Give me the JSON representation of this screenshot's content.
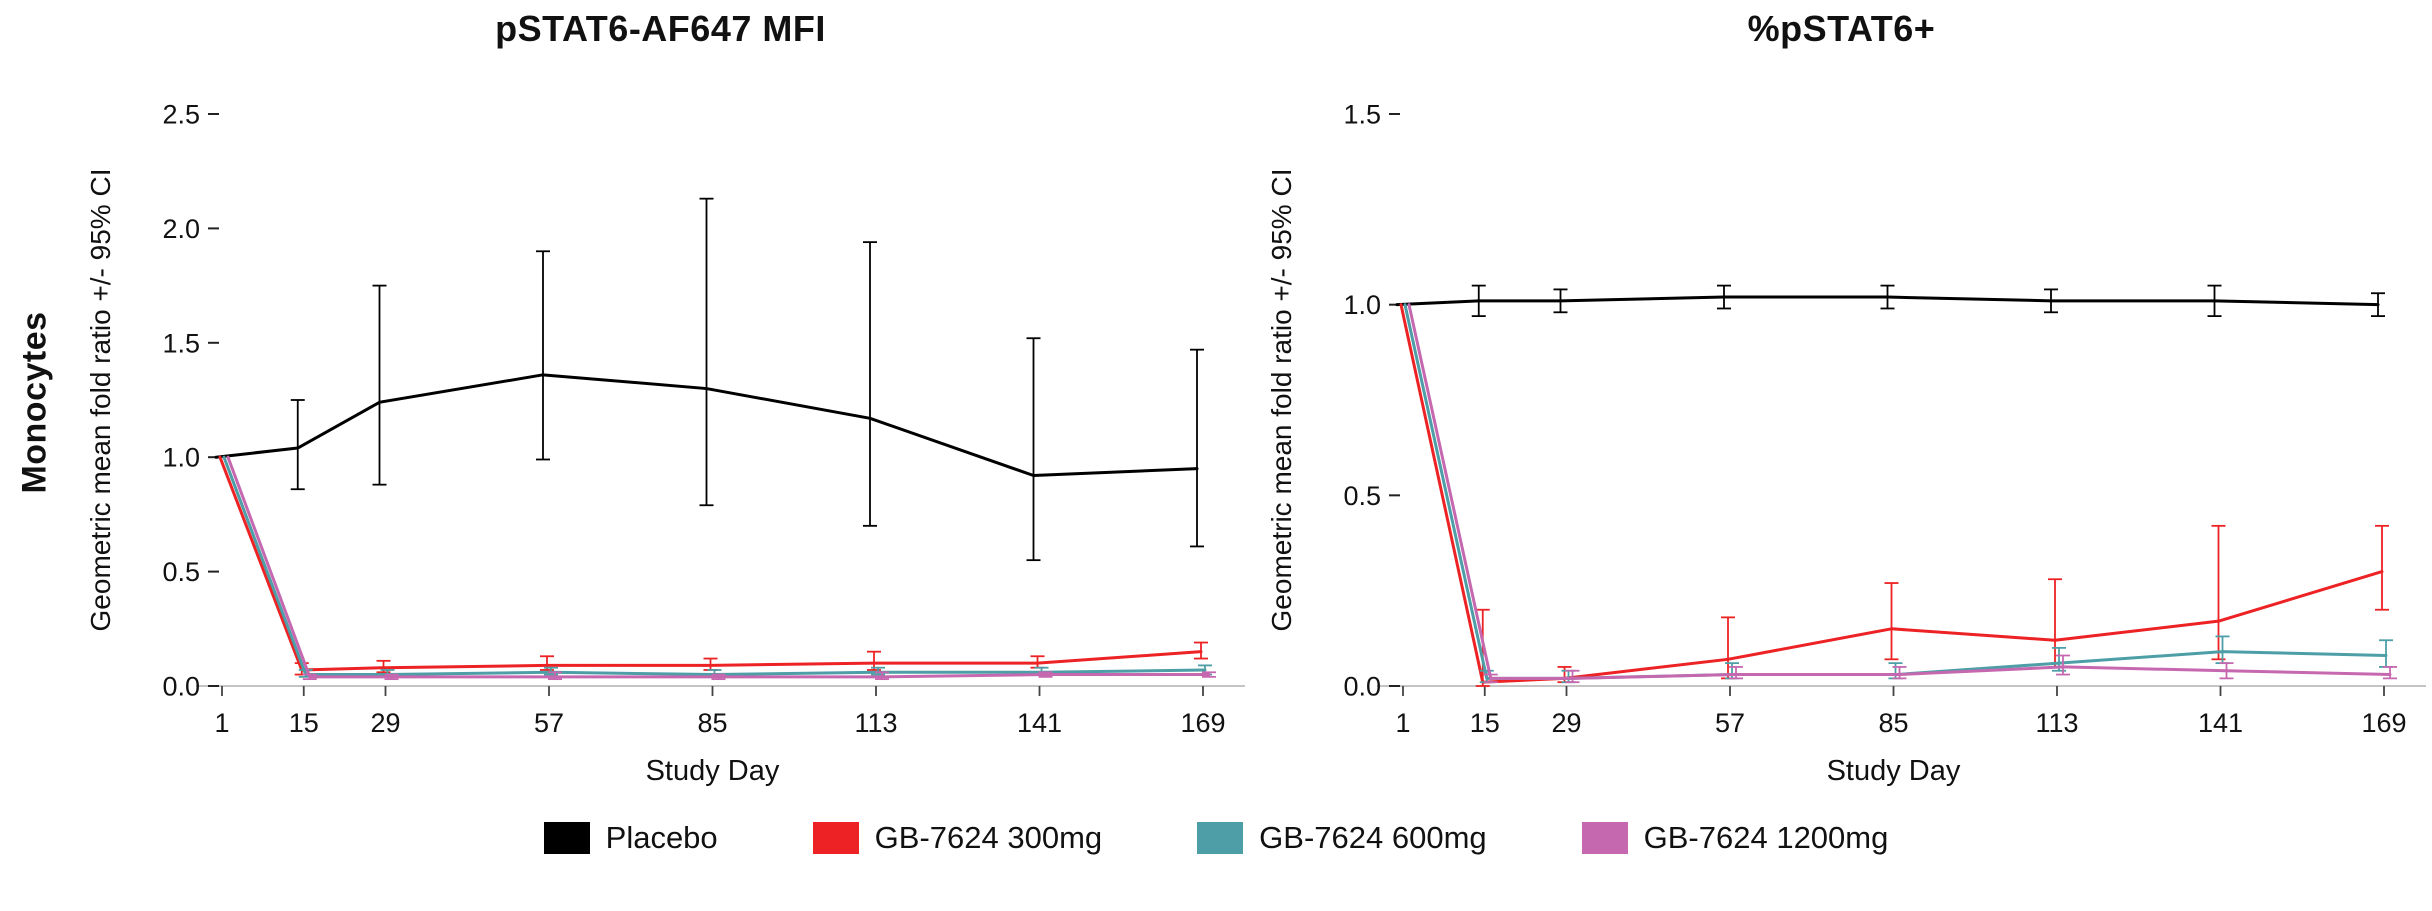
{
  "page": {
    "row_label": "Monocytes",
    "legend": [
      {
        "label": "Placebo",
        "color": "#000000"
      },
      {
        "label": "GB-7624 300mg",
        "color": "#ed2224"
      },
      {
        "label": "GB-7624 600mg",
        "color": "#4d9ea6"
      },
      {
        "label": "GB-7624 1200mg",
        "color": "#c668b0"
      }
    ]
  },
  "chart_data": [
    {
      "type": "line",
      "title": "pSTAT6-AF647 MFI",
      "xlabel": "Study Day",
      "ylabel": "Geometric mean fold ratio +/- 95% CI",
      "x": [
        1,
        15,
        29,
        57,
        85,
        113,
        141,
        169
      ],
      "ylim": [
        0,
        2.5
      ],
      "yticks": [
        0.0,
        0.5,
        1.0,
        1.5,
        2.0,
        2.5
      ],
      "grid": false,
      "legend_position": "bottom",
      "series": [
        {
          "name": "Placebo",
          "color": "#000000",
          "values": [
            1.0,
            1.04,
            1.24,
            1.36,
            1.3,
            1.17,
            0.92,
            0.95
          ],
          "lo": [
            1.0,
            0.86,
            0.88,
            0.99,
            0.79,
            0.7,
            0.55,
            0.61
          ],
          "hi": [
            1.0,
            1.25,
            1.75,
            1.9,
            2.13,
            1.94,
            1.52,
            1.47
          ]
        },
        {
          "name": "GB-7624 300mg",
          "color": "#ed2224",
          "values": [
            1.0,
            0.07,
            0.08,
            0.09,
            0.09,
            0.1,
            0.1,
            0.15
          ],
          "lo": [
            1.0,
            0.05,
            0.06,
            0.07,
            0.07,
            0.07,
            0.08,
            0.12
          ],
          "hi": [
            1.0,
            0.1,
            0.11,
            0.13,
            0.12,
            0.15,
            0.13,
            0.19
          ]
        },
        {
          "name": "GB-7624 600mg",
          "color": "#4d9ea6",
          "values": [
            1.0,
            0.05,
            0.05,
            0.06,
            0.05,
            0.06,
            0.06,
            0.07
          ],
          "lo": [
            1.0,
            0.04,
            0.04,
            0.05,
            0.04,
            0.05,
            0.05,
            0.05
          ],
          "hi": [
            1.0,
            0.07,
            0.07,
            0.08,
            0.07,
            0.08,
            0.08,
            0.09
          ]
        },
        {
          "name": "GB-7624 1200mg",
          "color": "#c668b0",
          "values": [
            1.0,
            0.04,
            0.04,
            0.04,
            0.04,
            0.04,
            0.05,
            0.05
          ],
          "lo": [
            1.0,
            0.03,
            0.03,
            0.03,
            0.03,
            0.03,
            0.04,
            0.04
          ],
          "hi": [
            1.0,
            0.05,
            0.05,
            0.06,
            0.05,
            0.06,
            0.06,
            0.06
          ]
        }
      ]
    },
    {
      "type": "line",
      "title": "%pSTAT6+",
      "xlabel": "Study Day",
      "ylabel": "Geometric mean fold ratio +/- 95% CI",
      "x": [
        1,
        15,
        29,
        57,
        85,
        113,
        141,
        169
      ],
      "ylim": [
        0,
        1.5
      ],
      "yticks": [
        0.0,
        0.5,
        1.0,
        1.5
      ],
      "grid": false,
      "legend_position": "bottom",
      "series": [
        {
          "name": "Placebo",
          "color": "#000000",
          "values": [
            1.0,
            1.01,
            1.01,
            1.02,
            1.02,
            1.01,
            1.01,
            1.0
          ],
          "lo": [
            1.0,
            0.97,
            0.98,
            0.99,
            0.99,
            0.98,
            0.97,
            0.97
          ],
          "hi": [
            1.0,
            1.05,
            1.04,
            1.05,
            1.05,
            1.04,
            1.05,
            1.03
          ]
        },
        {
          "name": "GB-7624 300mg",
          "color": "#ed2224",
          "values": [
            1.0,
            0.01,
            0.02,
            0.07,
            0.15,
            0.12,
            0.17,
            0.3
          ],
          "lo": [
            1.0,
            0.0,
            0.01,
            0.02,
            0.07,
            0.05,
            0.07,
            0.2
          ],
          "hi": [
            1.0,
            0.2,
            0.05,
            0.18,
            0.27,
            0.28,
            0.42,
            0.42
          ]
        },
        {
          "name": "GB-7624 600mg",
          "color": "#4d9ea6",
          "values": [
            1.0,
            0.02,
            0.02,
            0.03,
            0.03,
            0.06,
            0.09,
            0.08
          ],
          "lo": [
            1.0,
            0.01,
            0.01,
            0.02,
            0.02,
            0.04,
            0.06,
            0.05
          ],
          "hi": [
            1.0,
            0.04,
            0.04,
            0.06,
            0.06,
            0.1,
            0.13,
            0.12
          ]
        },
        {
          "name": "GB-7624 1200mg",
          "color": "#c668b0",
          "values": [
            1.0,
            0.02,
            0.02,
            0.03,
            0.03,
            0.05,
            0.04,
            0.03
          ],
          "lo": [
            1.0,
            0.01,
            0.01,
            0.02,
            0.02,
            0.03,
            0.02,
            0.02
          ],
          "hi": [
            1.0,
            0.03,
            0.04,
            0.05,
            0.05,
            0.08,
            0.06,
            0.05
          ]
        }
      ]
    }
  ]
}
